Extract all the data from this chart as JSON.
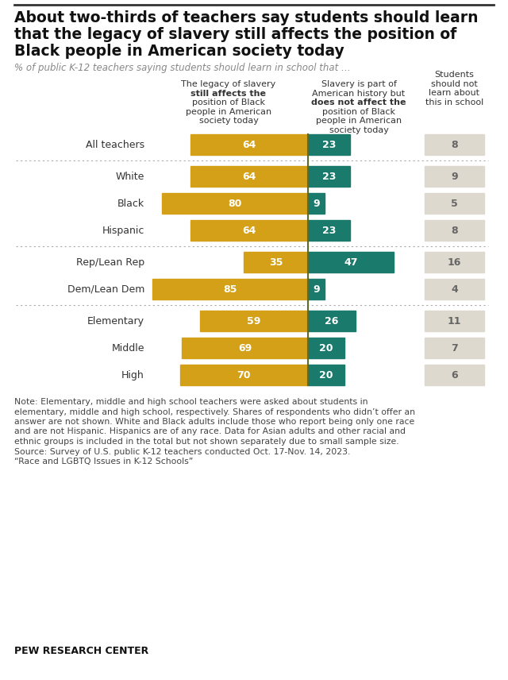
{
  "title_lines": [
    "About two-thirds of teachers say students should learn",
    "that the legacy of slavery still affects the position of",
    "Black people in American society today"
  ],
  "subtitle": "% of public K-12 teachers saying students should learn in school that …",
  "categories": [
    "All teachers",
    "White",
    "Black",
    "Hispanic",
    "Rep/Lean Rep",
    "Dem/Lean Dem",
    "Elementary",
    "Middle",
    "High"
  ],
  "col1_values": [
    64,
    64,
    80,
    64,
    35,
    85,
    59,
    69,
    70
  ],
  "col2_values": [
    23,
    23,
    9,
    23,
    47,
    9,
    26,
    20,
    20
  ],
  "col3_values": [
    8,
    9,
    5,
    8,
    16,
    4,
    11,
    7,
    6
  ],
  "col1_color": "#D4A017",
  "col2_color": "#1A7A6B",
  "col3_color": "#DDD9CE",
  "col3_text_color": "#666666",
  "divider_after": [
    0,
    3,
    5
  ],
  "center_line_color": "#5A6B2A",
  "note": "Note: Elementary, middle and high school teachers were asked about students in\nelementary, middle and high school, respectively. Shares of respondents who didn’t offer an\nanswer are not shown. White and Black adults include those who report being only one race\nand are not Hispanic. Hispanics are of any race. Data for Asian adults and other racial and\nethnic groups is included in the total but not shown separately due to small sample size.\nSource: Survey of U.S. public K-12 teachers conducted Oct. 17-Nov. 14, 2023.\n“Race and LGBTQ Issues in K-12 Schools”",
  "source_label": "PEW RESEARCH CENTER",
  "bg_color": "#FFFFFF"
}
